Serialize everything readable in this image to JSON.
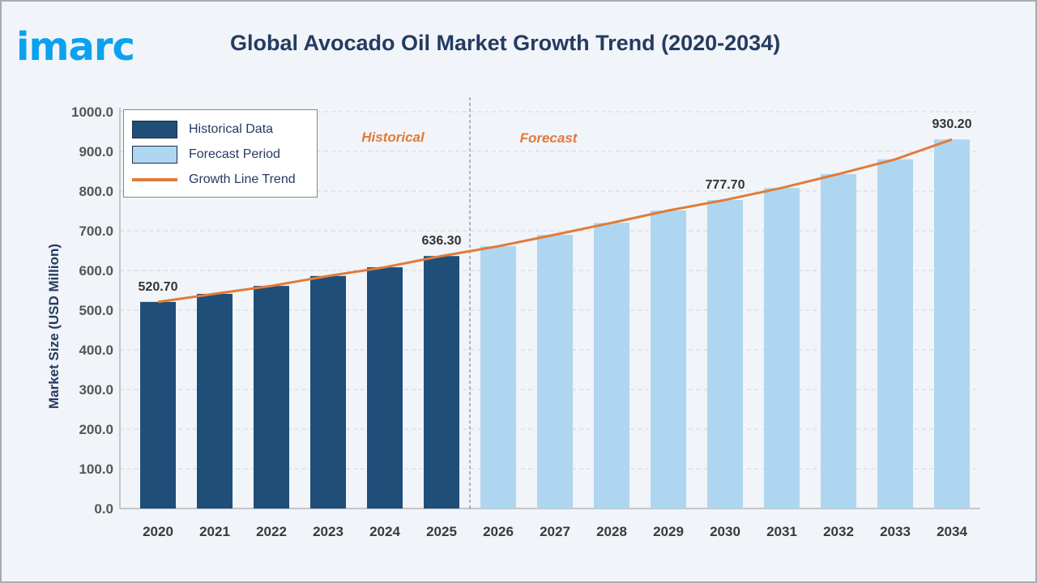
{
  "logo": "imarc",
  "title": "Global Avocado Oil Market Growth Trend (2020-2034)",
  "chart_data": {
    "type": "bar",
    "title": "Global Avocado Oil Market Growth Trend (2020-2034)",
    "ylabel": "Market Size (USD Million)",
    "xlabel": "",
    "ylim": [
      0,
      1000
    ],
    "yticks": [
      "0.0",
      "100.0",
      "200.0",
      "300.0",
      "400.0",
      "500.0",
      "600.0",
      "700.0",
      "800.0",
      "900.0",
      "1000.0"
    ],
    "categories": [
      "2020",
      "2021",
      "2022",
      "2023",
      "2024",
      "2025",
      "2026",
      "2027",
      "2028",
      "2029",
      "2030",
      "2031",
      "2032",
      "2033",
      "2034"
    ],
    "values": [
      520.7,
      541,
      561,
      586,
      608,
      636.3,
      661,
      690,
      720,
      751,
      777.7,
      808,
      843,
      880,
      930.2
    ],
    "historical_count": 6,
    "data_labels": {
      "2020": "520.70",
      "2025": "636.30",
      "2030": "777.70",
      "2034": "930.20"
    },
    "period_labels": {
      "historical": "Historical",
      "forecast": "Forecast"
    },
    "legend": [
      {
        "name": "Historical Data",
        "color": "#1f4e79"
      },
      {
        "name": "Forecast Period",
        "color": "#afd6f0"
      },
      {
        "name": "Growth Line Trend",
        "color": "#e07b39"
      }
    ],
    "legend_position": "top-left",
    "grid": true,
    "trend_line": true
  }
}
